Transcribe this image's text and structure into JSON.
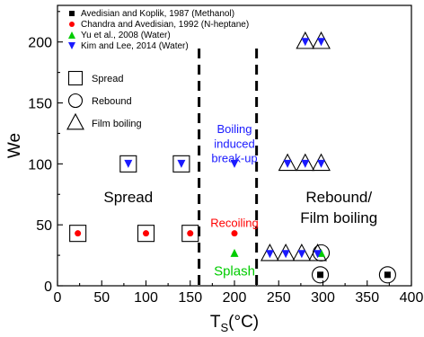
{
  "chart_data": {
    "type": "scatter",
    "xlabel_main": "T",
    "xlabel_sub": "S",
    "xlabel_unit": "(°C)",
    "ylabel": "We",
    "xlim": [
      0,
      400
    ],
    "ylim": [
      0,
      230
    ],
    "x_ticks": [
      "0",
      "50",
      "100",
      "150",
      "200",
      "250",
      "300",
      "350",
      "400"
    ],
    "y_ticks": [
      "0",
      "50",
      "100",
      "150",
      "200"
    ],
    "series": [
      {
        "name": "Avedisian and Koplik, 1987 (Methanol)",
        "marker": "square",
        "color": "#000000",
        "points": [
          [
            297,
            9
          ],
          [
            373,
            9
          ]
        ]
      },
      {
        "name": "Chandra and Avedisian, 1992 (N-heptane)",
        "marker": "circle",
        "color": "#ff0000",
        "points": [
          [
            23,
            43
          ],
          [
            100,
            43
          ],
          [
            150,
            43
          ],
          [
            200,
            43
          ]
        ]
      },
      {
        "name": "Yu et al., 2008 (Water)",
        "marker": "triangle-up",
        "color": "#00cc00",
        "points": [
          [
            200,
            27
          ],
          [
            298,
            27
          ]
        ]
      },
      {
        "name": "Kim and Lee, 2014 (Water)",
        "marker": "triangle-down",
        "color": "#1a1aff",
        "points": [
          [
            80,
            100
          ],
          [
            140,
            100
          ],
          [
            200,
            100
          ],
          [
            260,
            100
          ],
          [
            280,
            100
          ],
          [
            298,
            100
          ],
          [
            280,
            200
          ],
          [
            298,
            200
          ],
          [
            240,
            26
          ],
          [
            258,
            26
          ],
          [
            276,
            26
          ],
          [
            294,
            26
          ]
        ]
      }
    ],
    "regime_outlines": [
      {
        "shape": "square",
        "points": [
          [
            23,
            43
          ],
          [
            100,
            43
          ],
          [
            150,
            43
          ],
          [
            80,
            100
          ],
          [
            140,
            100
          ]
        ]
      },
      {
        "shape": "circle",
        "points": [
          [
            297,
            9
          ],
          [
            373,
            9
          ],
          [
            298,
            27
          ]
        ]
      },
      {
        "shape": "triangle",
        "points": [
          [
            240,
            26
          ],
          [
            258,
            26
          ],
          [
            276,
            26
          ],
          [
            294,
            26
          ],
          [
            260,
            100
          ],
          [
            280,
            100
          ],
          [
            298,
            100
          ],
          [
            280,
            200
          ],
          [
            298,
            200
          ]
        ]
      }
    ],
    "boundaries_x": [
      160,
      225
    ],
    "shape_legend": [
      {
        "shape": "square",
        "label": "Spread"
      },
      {
        "shape": "circle",
        "label": "Rebound"
      },
      {
        "shape": "triangle",
        "label": "Film boiling"
      }
    ],
    "annotations": [
      {
        "text": "Boiling",
        "x": 200,
        "y": 129,
        "color": "#1a1aff"
      },
      {
        "text": "induced",
        "x": 200,
        "y": 117,
        "color": "#1a1aff"
      },
      {
        "text": "break-up",
        "x": 200,
        "y": 105,
        "color": "#1a1aff"
      },
      {
        "text": "Recoiling",
        "x": 200,
        "y": 52,
        "color": "#ff0000"
      },
      {
        "text": "Splash",
        "x": 200,
        "y": 12,
        "color": "#00cc00"
      }
    ],
    "region_labels": [
      {
        "text": "Spread",
        "x": 80,
        "y": 73
      },
      {
        "text": "Rebound/",
        "x": 318,
        "y": 73
      },
      {
        "text": "Film boiling",
        "x": 318,
        "y": 56
      }
    ],
    "grid": false,
    "legend_placement": "top-left"
  }
}
